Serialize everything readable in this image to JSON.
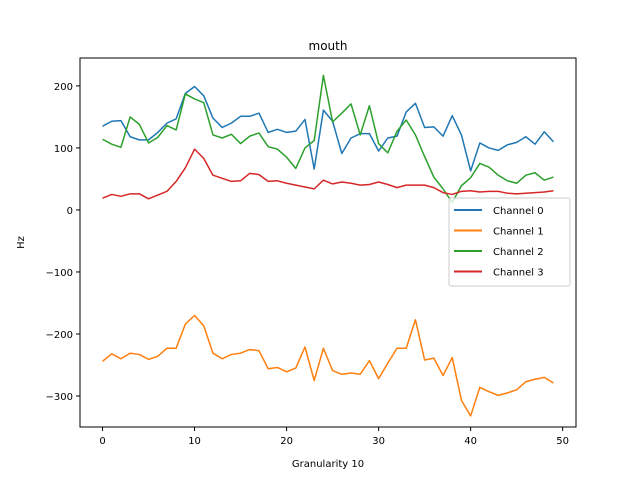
{
  "chart_data": {
    "type": "line",
    "title": "mouth",
    "xlabel": "Granularity 10",
    "ylabel": "Hz",
    "xlim": [
      -2.45,
      51.45
    ],
    "ylim": [
      -350,
      245
    ],
    "xticks": [
      0,
      10,
      20,
      30,
      40,
      50
    ],
    "yticks": [
      -300,
      -200,
      -100,
      0,
      100,
      200
    ],
    "grid": false,
    "legend_position": "center-right",
    "x": [
      0,
      1,
      2,
      3,
      4,
      5,
      6,
      7,
      8,
      9,
      10,
      11,
      12,
      13,
      14,
      15,
      16,
      17,
      18,
      19,
      20,
      21,
      22,
      23,
      24,
      25,
      26,
      27,
      28,
      29,
      30,
      31,
      32,
      33,
      34,
      35,
      36,
      37,
      38,
      39,
      40,
      41,
      42,
      43,
      44,
      45,
      46,
      47,
      48,
      49
    ],
    "series": [
      {
        "name": "Channel 0",
        "color": "#1f77b4",
        "values": [
          135,
          143,
          144,
          118,
          113,
          113,
          125,
          140,
          147,
          188,
          199,
          184,
          148,
          133,
          140,
          151,
          151,
          156,
          125,
          130,
          125,
          127,
          146,
          66,
          161,
          143,
          91,
          116,
          123,
          123,
          95,
          116,
          119,
          158,
          172,
          133,
          134,
          119,
          152,
          121,
          63,
          108,
          100,
          96,
          105,
          109,
          118,
          106,
          126,
          110
        ]
      },
      {
        "name": "Channel 1",
        "color": "#ff7f0e",
        "values": [
          -244,
          -232,
          -240,
          -231,
          -233,
          -241,
          -236,
          -223,
          -223,
          -184,
          -170,
          -187,
          -231,
          -240,
          -233,
          -231,
          -225,
          -227,
          -256,
          -254,
          -261,
          -255,
          -221,
          -275,
          -223,
          -259,
          -265,
          -263,
          -265,
          -243,
          -272,
          -247,
          -223,
          -223,
          -177,
          -242,
          -239,
          -267,
          -238,
          -307,
          -332,
          -286,
          -293,
          -299,
          -295,
          -290,
          -277,
          -273,
          -270,
          -279
        ]
      },
      {
        "name": "Channel 2",
        "color": "#2ca02c",
        "values": [
          114,
          106,
          101,
          150,
          138,
          108,
          117,
          136,
          129,
          187,
          179,
          173,
          121,
          116,
          122,
          107,
          119,
          124,
          102,
          98,
          85,
          67,
          100,
          112,
          217,
          142,
          156,
          171,
          121,
          168,
          107,
          92,
          127,
          145,
          121,
          86,
          53,
          34,
          12,
          39,
          52,
          75,
          69,
          56,
          47,
          43,
          56,
          60,
          48,
          53
        ]
      },
      {
        "name": "Channel 3",
        "color": "#d62728",
        "values": [
          19,
          25,
          22,
          26,
          26,
          18,
          24,
          30,
          46,
          68,
          98,
          83,
          56,
          51,
          46,
          47,
          59,
          57,
          46,
          47,
          43,
          40,
          37,
          34,
          48,
          42,
          45,
          43,
          40,
          41,
          45,
          41,
          36,
          40,
          40,
          40,
          36,
          28,
          25,
          30,
          31,
          29,
          30,
          30,
          27,
          26,
          27,
          28,
          29,
          31
        ]
      }
    ]
  }
}
